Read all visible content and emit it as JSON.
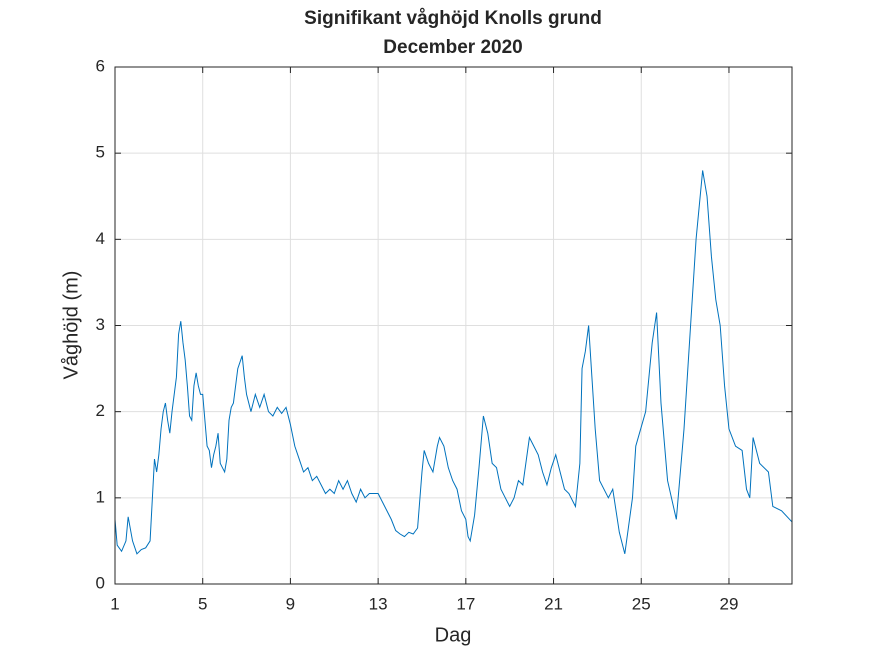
{
  "chart_data": {
    "type": "line",
    "title": "Signifikant våghöjd Knolls grund",
    "subtitle": "December 2020",
    "xlabel": "Dag",
    "ylabel": "Våghöjd (m)",
    "xlim": [
      1,
      31.875
    ],
    "ylim": [
      0,
      6
    ],
    "xticks": [
      1,
      5,
      9,
      13,
      17,
      21,
      25,
      29
    ],
    "yticks": [
      0,
      1,
      2,
      3,
      4,
      5,
      6
    ],
    "grid": true,
    "series": [
      {
        "color": "#0072bd",
        "x": [
          1,
          1.1,
          1.3,
          1.5,
          1.6,
          1.8,
          2.0,
          2.2,
          2.4,
          2.6,
          2.8,
          2.9,
          3.0,
          3.1,
          3.2,
          3.3,
          3.4,
          3.5,
          3.6,
          3.7,
          3.8,
          3.9,
          4.0,
          4.1,
          4.2,
          4.3,
          4.4,
          4.5,
          4.6,
          4.7,
          4.8,
          4.9,
          5.0,
          5.1,
          5.2,
          5.3,
          5.4,
          5.5,
          5.6,
          5.7,
          5.8,
          5.9,
          6.0,
          6.1,
          6.2,
          6.3,
          6.4,
          6.6,
          6.8,
          6.9,
          7.0,
          7.2,
          7.4,
          7.6,
          7.8,
          8.0,
          8.2,
          8.4,
          8.6,
          8.8,
          9.0,
          9.2,
          9.4,
          9.6,
          9.8,
          10.0,
          10.2,
          10.4,
          10.6,
          10.8,
          11.0,
          11.2,
          11.4,
          11.6,
          11.8,
          12.0,
          12.2,
          12.4,
          12.6,
          12.8,
          13.0,
          13.2,
          13.4,
          13.6,
          13.8,
          14.0,
          14.2,
          14.4,
          14.6,
          14.8,
          15.0,
          15.1,
          15.3,
          15.5,
          15.7,
          15.8,
          16.0,
          16.2,
          16.4,
          16.6,
          16.8,
          17.0,
          17.1,
          17.2,
          17.4,
          17.6,
          17.8,
          18.0,
          18.2,
          18.4,
          18.6,
          18.8,
          19.0,
          19.2,
          19.4,
          19.6,
          19.9,
          20.1,
          20.3,
          20.5,
          20.7,
          20.9,
          21.1,
          21.3,
          21.5,
          21.7,
          22.0,
          22.2,
          22.3,
          22.45,
          22.6,
          22.75,
          22.9,
          23.1,
          23.5,
          23.7,
          24.0,
          24.25,
          24.6,
          24.75,
          25.2,
          25.5,
          25.7,
          25.9,
          26.2,
          26.6,
          26.95,
          27.1,
          27.3,
          27.5,
          27.8,
          28.0,
          28.2,
          28.4,
          28.6,
          28.8,
          29.0,
          29.3,
          29.6,
          29.8,
          29.95,
          30.1,
          30.4,
          30.8,
          31.0,
          31.4,
          31.875
        ],
        "values": [
          0.75,
          0.45,
          0.38,
          0.5,
          0.78,
          0.5,
          0.35,
          0.4,
          0.42,
          0.5,
          1.45,
          1.3,
          1.5,
          1.8,
          2.0,
          2.1,
          1.9,
          1.75,
          2.0,
          2.2,
          2.4,
          2.9,
          3.05,
          2.8,
          2.6,
          2.3,
          1.95,
          1.9,
          2.3,
          2.45,
          2.3,
          2.2,
          2.2,
          1.9,
          1.6,
          1.55,
          1.35,
          1.5,
          1.6,
          1.75,
          1.4,
          1.35,
          1.3,
          1.45,
          1.9,
          2.05,
          2.1,
          2.5,
          2.65,
          2.4,
          2.2,
          2.0,
          2.2,
          2.05,
          2.2,
          2.0,
          1.95,
          2.05,
          1.98,
          2.05,
          1.85,
          1.6,
          1.45,
          1.3,
          1.35,
          1.2,
          1.25,
          1.15,
          1.05,
          1.1,
          1.05,
          1.2,
          1.1,
          1.2,
          1.05,
          0.95,
          1.1,
          1.0,
          1.05,
          1.05,
          1.05,
          0.95,
          0.85,
          0.75,
          0.62,
          0.58,
          0.55,
          0.6,
          0.58,
          0.65,
          1.3,
          1.55,
          1.4,
          1.3,
          1.6,
          1.7,
          1.6,
          1.35,
          1.2,
          1.1,
          0.85,
          0.75,
          0.55,
          0.5,
          0.8,
          1.35,
          1.95,
          1.75,
          1.4,
          1.35,
          1.1,
          1.0,
          0.9,
          1.0,
          1.2,
          1.15,
          1.7,
          1.6,
          1.5,
          1.3,
          1.15,
          1.35,
          1.5,
          1.3,
          1.1,
          1.05,
          0.9,
          1.4,
          2.5,
          2.7,
          3.0,
          2.4,
          1.8,
          1.2,
          1.0,
          1.1,
          0.6,
          0.35,
          1.0,
          1.6,
          2.0,
          2.8,
          3.15,
          2.1,
          1.2,
          0.75,
          1.8,
          2.4,
          3.2,
          4.0,
          4.8,
          4.5,
          3.8,
          3.3,
          3.0,
          2.3,
          1.8,
          1.6,
          1.55,
          1.1,
          1.0,
          1.7,
          1.4,
          1.3,
          0.9,
          0.85,
          0.72
        ]
      }
    ]
  }
}
